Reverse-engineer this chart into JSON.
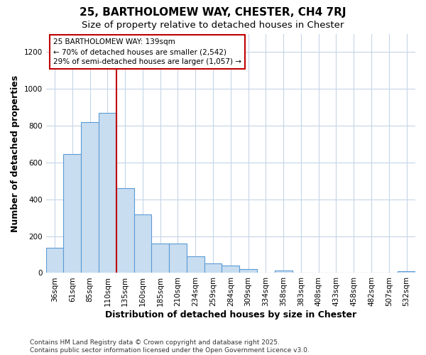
{
  "title": "25, BARTHOLOMEW WAY, CHESTER, CH4 7RJ",
  "subtitle": "Size of property relative to detached houses in Chester",
  "xlabel": "Distribution of detached houses by size in Chester",
  "ylabel": "Number of detached properties",
  "bin_labels": [
    "36sqm",
    "61sqm",
    "85sqm",
    "110sqm",
    "135sqm",
    "160sqm",
    "185sqm",
    "210sqm",
    "234sqm",
    "259sqm",
    "284sqm",
    "309sqm",
    "334sqm",
    "358sqm",
    "383sqm",
    "408sqm",
    "433sqm",
    "458sqm",
    "482sqm",
    "507sqm",
    "532sqm"
  ],
  "bar_values": [
    135,
    645,
    820,
    870,
    460,
    320,
    160,
    160,
    90,
    50,
    40,
    20,
    0,
    15,
    0,
    0,
    0,
    0,
    0,
    0,
    10
  ],
  "bar_color": "#c8ddf0",
  "bar_edge_color": "#5b9bd5",
  "red_line_x": 4,
  "highlight_color": "#c00000",
  "annotation_text": "25 BARTHOLOMEW WAY: 139sqm\n← 70% of detached houses are smaller (2,542)\n29% of semi-detached houses are larger (1,057) →",
  "ylim": [
    0,
    1300
  ],
  "yticks": [
    0,
    200,
    400,
    600,
    800,
    1000,
    1200
  ],
  "footer": "Contains HM Land Registry data © Crown copyright and database right 2025.\nContains public sector information licensed under the Open Government Licence v3.0.",
  "bg_color": "#ffffff",
  "plot_bg_color": "#ffffff",
  "grid_color": "#c5d5e8",
  "title_fontsize": 11,
  "subtitle_fontsize": 9.5,
  "axis_label_fontsize": 9,
  "tick_fontsize": 7.5,
  "footer_fontsize": 6.5
}
